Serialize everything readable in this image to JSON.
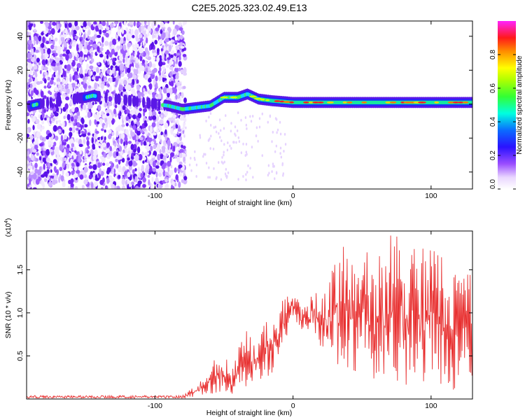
{
  "title": "C2E5.2025.323.02.49.E13",
  "chart_data": [
    {
      "type": "heatmap",
      "title": "C2E5.2025.323.02.49.E13",
      "xlabel": "Height of straight line (km)",
      "ylabel": "Frequency (Hz)",
      "xlim": [
        -193,
        130
      ],
      "ylim": [
        -50,
        49
      ],
      "x_ticks": [
        -100,
        0,
        100
      ],
      "x_tick_labels": [
        "-100",
        "0",
        "100"
      ],
      "y_ticks": [
        -40,
        -20,
        0,
        20,
        40
      ],
      "y_tick_labels": [
        "-40",
        "-20",
        "0",
        "20",
        "40"
      ],
      "ridge": [
        {
          "x": -190,
          "f": -1
        },
        {
          "x": -185,
          "f": 0
        },
        {
          "x": -150,
          "f": 4
        },
        {
          "x": -145,
          "f": 5
        },
        {
          "x": -90,
          "f": -1
        },
        {
          "x": -80,
          "f": -3
        },
        {
          "x": -70,
          "f": -2
        },
        {
          "x": -60,
          "f": -1
        },
        {
          "x": -50,
          "f": 4
        },
        {
          "x": -40,
          "f": 4
        },
        {
          "x": -33,
          "f": 6
        },
        {
          "x": -25,
          "f": 3
        },
        {
          "x": -15,
          "f": 2
        },
        {
          "x": 0,
          "f": 1
        },
        {
          "x": 50,
          "f": 1
        },
        {
          "x": 100,
          "f": 1
        },
        {
          "x": 130,
          "f": 1
        }
      ],
      "colorbar": {
        "label": "Normalized spectral amplitude",
        "ticks": [
          "0.0",
          "0.2",
          "0.4",
          "0.6",
          "0.8"
        ],
        "tick_values": [
          0,
          0.2,
          0.4,
          0.6,
          0.8
        ],
        "range": [
          0,
          1
        ]
      }
    },
    {
      "type": "line",
      "title": "",
      "xlabel": "Height of straight line (km)",
      "ylabel": "SNR (10 * v/v)",
      "multiplier_label": "(x10",
      "multiplier_exp": "4",
      "multiplier_close": ")",
      "xlim": [
        -193,
        130
      ],
      "ylim": [
        0,
        1.95
      ],
      "x_ticks": [
        -100,
        0,
        100
      ],
      "x_tick_labels": [
        "-100",
        "0",
        "100"
      ],
      "y_ticks": [
        0.5,
        1.0,
        1.5
      ],
      "y_tick_labels": [
        "0.5",
        "1.0",
        "1.5"
      ],
      "color": "#e83030",
      "envelope_x": [
        -193,
        -80,
        -65,
        -58,
        -50,
        -45,
        -40,
        -35,
        -30,
        -25,
        -20,
        -15,
        -10,
        -5,
        -2,
        0,
        5,
        10,
        15,
        20,
        25,
        30,
        35,
        40,
        50,
        60,
        70,
        80,
        90,
        100,
        110,
        120,
        130
      ],
      "envelope_top": [
        0.04,
        0.05,
        0.25,
        0.45,
        0.6,
        0.3,
        0.55,
        0.85,
        0.7,
        0.75,
        0.9,
        0.85,
        1.1,
        1.25,
        1.18,
        1.22,
        1.15,
        1.05,
        1.35,
        1.25,
        1.45,
        1.6,
        1.85,
        1.8,
        1.75,
        1.7,
        1.98,
        1.85,
        1.75,
        1.8,
        1.7,
        1.82,
        1.5
      ],
      "envelope_low": [
        0.0,
        0.0,
        0.03,
        0.05,
        0.08,
        0.05,
        0.08,
        0.1,
        0.15,
        0.2,
        0.25,
        0.3,
        0.45,
        0.7,
        0.9,
        0.95,
        0.8,
        0.75,
        0.72,
        0.6,
        0.5,
        0.45,
        0.35,
        0.3,
        0.25,
        0.2,
        0.2,
        0.15,
        0.15,
        0.12,
        0.1,
        0.1,
        0.1
      ]
    }
  ]
}
